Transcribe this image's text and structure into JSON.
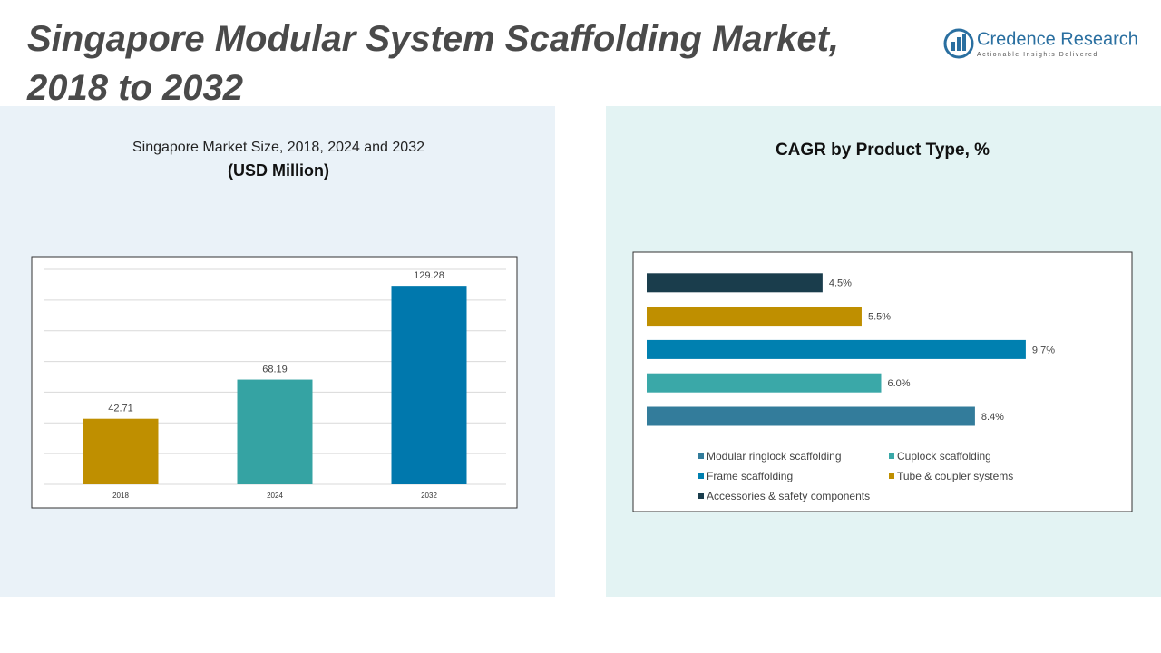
{
  "header": {
    "title": "Singapore Modular System Scaffolding Market, 2018 to 2032",
    "logo": "Credence Research",
    "tagline": "Actionable Insights Delivered"
  },
  "chart_data": [
    {
      "type": "bar",
      "title": "Singapore Market Size, 2018, 2024 and 2032",
      "subtitle": "(USD Million)",
      "categories": [
        "2018",
        "2024",
        "2032"
      ],
      "values": [
        42.71,
        68.19,
        129.28
      ],
      "colors": [
        "#bf8f00",
        "#35a3a3",
        "#0078ad"
      ],
      "ylim": [
        0,
        140
      ],
      "yticks": [
        0,
        20,
        40,
        60,
        80,
        100,
        120,
        140
      ],
      "grid": true,
      "tick_labels": false
    },
    {
      "type": "hbar",
      "title": "CAGR by Product Type, %",
      "categories": [
        "Modular ringlock scaffolding",
        "Cuplock scaffolding",
        "Frame scaffolding",
        "Tube & coupler systems",
        "Accessories & safety components"
      ],
      "values": [
        8.4,
        6.0,
        9.7,
        5.5,
        4.5
      ],
      "value_labels": [
        "8.4%",
        "6.0%",
        "9.7%",
        "5.5%",
        "4.5%"
      ],
      "colors": [
        "#337c9b",
        "#3aa8a8",
        "#0080b0",
        "#bf8f00",
        "#1a3d4c"
      ],
      "xlim": [
        0,
        12
      ],
      "legend": "bottom"
    }
  ]
}
